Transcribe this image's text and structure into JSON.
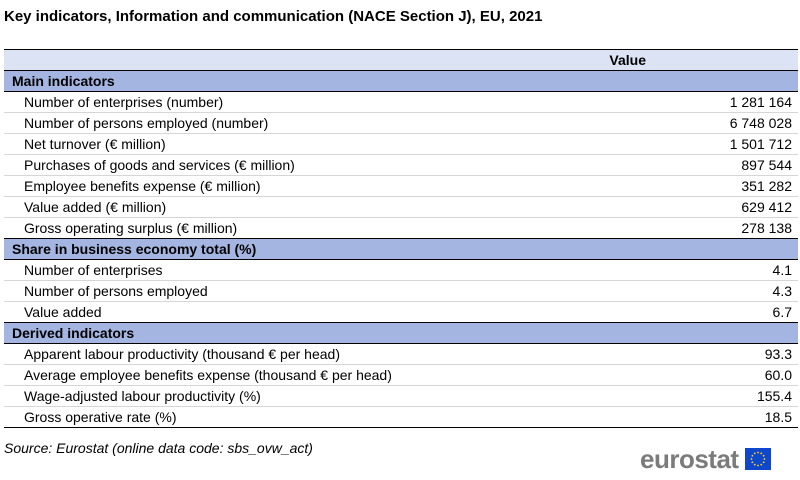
{
  "title": "Key indicators, Information and communication (NACE Section J), EU, 2021",
  "table": {
    "value_header": "Value",
    "sections": [
      {
        "label": "Main indicators",
        "rows": [
          {
            "label": "Number of enterprises (number)",
            "value": "1 281 164"
          },
          {
            "label": "Number of persons employed (number)",
            "value": "6 748 028"
          },
          {
            "label": "Net turnover (€ million)",
            "value": "1 501 712"
          },
          {
            "label": "Purchases of goods and services (€ million)",
            "value": "897 544"
          },
          {
            "label": "Employee benefits expense (€ million)",
            "value": "351 282"
          },
          {
            "label": "Value added (€ million)",
            "value": "629 412"
          },
          {
            "label": "Gross operating surplus (€ million)",
            "value": "278 138"
          }
        ]
      },
      {
        "label": "Share in business economy total (%)",
        "rows": [
          {
            "label": "Number of enterprises",
            "value": "4.1"
          },
          {
            "label": "Number of persons employed",
            "value": "4.3"
          },
          {
            "label": "Value added",
            "value": "6.7"
          }
        ]
      },
      {
        "label": "Derived indicators",
        "rows": [
          {
            "label": "Apparent labour productivity (thousand € per head)",
            "value": "93.3"
          },
          {
            "label": "Average employee benefits expense (thousand € per head)",
            "value": "60.0"
          },
          {
            "label": "Wage-adjusted labour productivity (%)",
            "value": "155.4"
          },
          {
            "label": "Gross operative rate (%)",
            "value": "18.5"
          }
        ]
      }
    ]
  },
  "source": "Source: Eurostat (online data code: sbs_ovw_act)",
  "logo": {
    "text": "eurostat",
    "icon": "eu-flag-icon"
  },
  "colors": {
    "header_bg": "#dbe3f4",
    "section_bg": "#a4b5e2",
    "logo_text": "#7b7b7b",
    "flag_blue": "#0e47cb",
    "flag_stars": "#ffd617"
  }
}
